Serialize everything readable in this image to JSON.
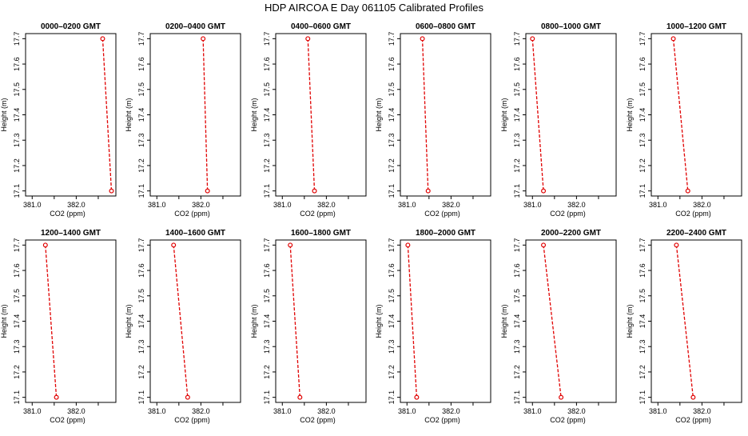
{
  "figure": {
    "title": "HDP AIRCOA E  Day 061105  Calibrated Profiles"
  },
  "colors": {
    "series": "#e00000",
    "axis": "#000000",
    "background": "#ffffff"
  },
  "chart_data": [
    {
      "type": "line",
      "title": "0000–0200 GMT",
      "xlabel": "CO2 (ppm)",
      "ylabel": "Height (m)",
      "xlim": [
        380.85,
        382.9
      ],
      "ylim": [
        17.08,
        17.72
      ],
      "xticks": [
        "381.0",
        "382.0"
      ],
      "yticks": [
        "17.1",
        "17.2",
        "17.3",
        "17.4",
        "17.5",
        "17.6",
        "17.7"
      ],
      "grid": false,
      "x": [
        382.6,
        382.8
      ],
      "y": [
        17.7,
        17.1
      ]
    },
    {
      "type": "line",
      "title": "0200–0400 GMT",
      "xlabel": "CO2 (ppm)",
      "ylabel": "Height (m)",
      "xlim": [
        380.85,
        382.9
      ],
      "ylim": [
        17.08,
        17.72
      ],
      "xticks": [
        "381.0",
        "382.0"
      ],
      "yticks": [
        "17.1",
        "17.2",
        "17.3",
        "17.4",
        "17.5",
        "17.6",
        "17.7"
      ],
      "grid": false,
      "x": [
        382.05,
        382.15
      ],
      "y": [
        17.7,
        17.1
      ]
    },
    {
      "type": "line",
      "title": "0400–0600 GMT",
      "xlabel": "CO2 (ppm)",
      "ylabel": "Height (m)",
      "xlim": [
        380.85,
        382.9
      ],
      "ylim": [
        17.08,
        17.72
      ],
      "xticks": [
        "381.0",
        "382.0"
      ],
      "yticks": [
        "17.1",
        "17.2",
        "17.3",
        "17.4",
        "17.5",
        "17.6",
        "17.7"
      ],
      "grid": false,
      "x": [
        381.58,
        381.73
      ],
      "y": [
        17.7,
        17.1
      ]
    },
    {
      "type": "line",
      "title": "0600–0800 GMT",
      "xlabel": "CO2 (ppm)",
      "ylabel": "Height (m)",
      "xlim": [
        380.85,
        382.9
      ],
      "ylim": [
        17.08,
        17.72
      ],
      "xticks": [
        "381.0",
        "382.0"
      ],
      "yticks": [
        "17.1",
        "17.2",
        "17.3",
        "17.4",
        "17.5",
        "17.6",
        "17.7"
      ],
      "grid": false,
      "x": [
        381.35,
        381.48
      ],
      "y": [
        17.7,
        17.1
      ]
    },
    {
      "type": "line",
      "title": "0800–1000 GMT",
      "xlabel": "CO2 (ppm)",
      "ylabel": "Height (m)",
      "xlim": [
        380.85,
        382.9
      ],
      "ylim": [
        17.08,
        17.72
      ],
      "xticks": [
        "381.0",
        "382.0"
      ],
      "yticks": [
        "17.1",
        "17.2",
        "17.3",
        "17.4",
        "17.5",
        "17.6",
        "17.7"
      ],
      "grid": false,
      "x": [
        381.0,
        381.25
      ],
      "y": [
        17.7,
        17.1
      ]
    },
    {
      "type": "line",
      "title": "1000–1200 GMT",
      "xlabel": "CO2 (ppm)",
      "ylabel": "Height (m)",
      "xlim": [
        380.85,
        382.9
      ],
      "ylim": [
        17.08,
        17.72
      ],
      "xticks": [
        "381.0",
        "382.0"
      ],
      "yticks": [
        "17.1",
        "17.2",
        "17.3",
        "17.4",
        "17.5",
        "17.6",
        "17.7"
      ],
      "grid": false,
      "x": [
        381.35,
        381.68
      ],
      "y": [
        17.7,
        17.1
      ]
    },
    {
      "type": "line",
      "title": "1200–1400 GMT",
      "xlabel": "CO2 (ppm)",
      "ylabel": "Height (m)",
      "xlim": [
        380.85,
        382.9
      ],
      "ylim": [
        17.08,
        17.72
      ],
      "xticks": [
        "381.0",
        "382.0"
      ],
      "yticks": [
        "17.1",
        "17.2",
        "17.3",
        "17.4",
        "17.5",
        "17.6",
        "17.7"
      ],
      "grid": false,
      "x": [
        381.3,
        381.55
      ],
      "y": [
        17.7,
        17.1
      ]
    },
    {
      "type": "line",
      "title": "1400–1600 GMT",
      "xlabel": "CO2 (ppm)",
      "ylabel": "Height (m)",
      "xlim": [
        380.85,
        382.9
      ],
      "ylim": [
        17.08,
        17.72
      ],
      "xticks": [
        "381.0",
        "382.0"
      ],
      "yticks": [
        "17.1",
        "17.2",
        "17.3",
        "17.4",
        "17.5",
        "17.6",
        "17.7"
      ],
      "grid": false,
      "x": [
        381.38,
        381.7
      ],
      "y": [
        17.7,
        17.1
      ]
    },
    {
      "type": "line",
      "title": "1600–1800 GMT",
      "xlabel": "CO2 (ppm)",
      "ylabel": "Height (m)",
      "xlim": [
        380.85,
        382.9
      ],
      "ylim": [
        17.08,
        17.72
      ],
      "xticks": [
        "381.0",
        "382.0"
      ],
      "yticks": [
        "17.1",
        "17.2",
        "17.3",
        "17.4",
        "17.5",
        "17.6",
        "17.7"
      ],
      "grid": false,
      "x": [
        381.18,
        381.4
      ],
      "y": [
        17.7,
        17.1
      ]
    },
    {
      "type": "line",
      "title": "1800–2000 GMT",
      "xlabel": "CO2 (ppm)",
      "ylabel": "Height (m)",
      "xlim": [
        380.85,
        382.9
      ],
      "ylim": [
        17.08,
        17.72
      ],
      "xticks": [
        "381.0",
        "382.0"
      ],
      "yticks": [
        "17.1",
        "17.2",
        "17.3",
        "17.4",
        "17.5",
        "17.6",
        "17.7"
      ],
      "grid": false,
      "x": [
        381.02,
        381.22
      ],
      "y": [
        17.7,
        17.1
      ]
    },
    {
      "type": "line",
      "title": "2000–2200 GMT",
      "xlabel": "CO2 (ppm)",
      "ylabel": "Height (m)",
      "xlim": [
        380.85,
        382.9
      ],
      "ylim": [
        17.08,
        17.72
      ],
      "xticks": [
        "381.0",
        "382.0"
      ],
      "yticks": [
        "17.1",
        "17.2",
        "17.3",
        "17.4",
        "17.5",
        "17.6",
        "17.7"
      ],
      "grid": false,
      "x": [
        381.25,
        381.65
      ],
      "y": [
        17.7,
        17.1
      ]
    },
    {
      "type": "line",
      "title": "2200–2400 GMT",
      "xlabel": "CO2 (ppm)",
      "ylabel": "Height (m)",
      "xlim": [
        380.85,
        382.9
      ],
      "ylim": [
        17.08,
        17.72
      ],
      "xticks": [
        "381.0",
        "382.0"
      ],
      "yticks": [
        "17.1",
        "17.2",
        "17.3",
        "17.4",
        "17.5",
        "17.6",
        "17.7"
      ],
      "grid": false,
      "x": [
        381.42,
        381.8
      ],
      "y": [
        17.7,
        17.1
      ]
    }
  ]
}
